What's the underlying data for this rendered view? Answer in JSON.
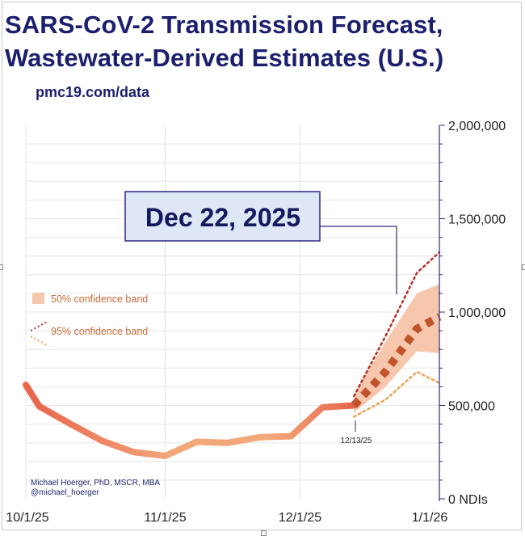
{
  "header": {
    "title_line1": "SARS-CoV-2 Transmission Forecast,",
    "title_line2": "Wastewater-Derived Estimates (U.S.)",
    "subtitle": "pmc19.com/data"
  },
  "callout": {
    "date_label": "Dec 22, 2025",
    "forecast_start_label": "12/13/25"
  },
  "credit": {
    "line1": "Michael Hoerger, PhD, MSCR, MBA",
    "line2": "@michael_hoerger"
  },
  "colors": {
    "title": "#1b1f6e",
    "observed_start": "#e8644a",
    "observed_end": "#f3a87c",
    "forecast_point": "#c0522c",
    "band50": "#f6c7ad",
    "band95_upper": "#b5322a",
    "band95_lower": "#f0a050",
    "legend_text": "#cc6a3a",
    "axis": "#2a2a80"
  },
  "chart_data": {
    "type": "line",
    "title": "SARS-CoV-2 Transmission Forecast, Wastewater-Derived Estimates (U.S.)",
    "xlabel": "",
    "ylabel": "",
    "x_tick_labels": [
      "10/1/25",
      "11/1/25",
      "12/1/25",
      "1/1/26"
    ],
    "y_tick_labels": [
      "0 NDIs",
      "500,000",
      "1,000,000",
      "1,500,000",
      "2,000,000"
    ],
    "y_ticks": [
      0,
      500000,
      1000000,
      1500000,
      2000000
    ],
    "ylim": [
      0,
      2000000
    ],
    "xlim": [
      "2025-10-01",
      "2026-01-01"
    ],
    "grid": true,
    "legend_position": "left-middle",
    "legend": [
      "50% confidence band",
      "95% confidence band"
    ],
    "series": [
      {
        "role": "observed",
        "x": [
          "2025-10-01",
          "2025-10-04",
          "2025-10-11",
          "2025-10-18",
          "2025-10-25",
          "2025-11-01",
          "2025-11-08",
          "2025-11-15",
          "2025-11-22",
          "2025-11-29",
          "2025-12-06",
          "2025-12-13"
        ],
        "y": [
          610000,
          495000,
          400000,
          310000,
          250000,
          230000,
          305000,
          300000,
          330000,
          335000,
          490000,
          500000
        ]
      },
      {
        "role": "forecast",
        "x": [
          "2025-12-13",
          "2025-12-20",
          "2025-12-27",
          "2026-01-01"
        ],
        "y": [
          500000,
          680000,
          910000,
          975000
        ]
      }
    ],
    "band50": {
      "x": [
        "2025-12-13",
        "2025-12-20",
        "2025-12-27",
        "2026-01-01"
      ],
      "upper": [
        560000,
        840000,
        1100000,
        1150000
      ],
      "lower": [
        460000,
        600000,
        790000,
        780000
      ]
    },
    "band95": {
      "x": [
        "2025-12-13",
        "2025-12-20",
        "2025-12-27",
        "2026-01-01"
      ],
      "upper": [
        550000,
        870000,
        1210000,
        1320000
      ],
      "lower": [
        440000,
        530000,
        680000,
        620000
      ]
    },
    "annotations": [
      "Dec 22, 2025",
      "12/13/25"
    ]
  }
}
